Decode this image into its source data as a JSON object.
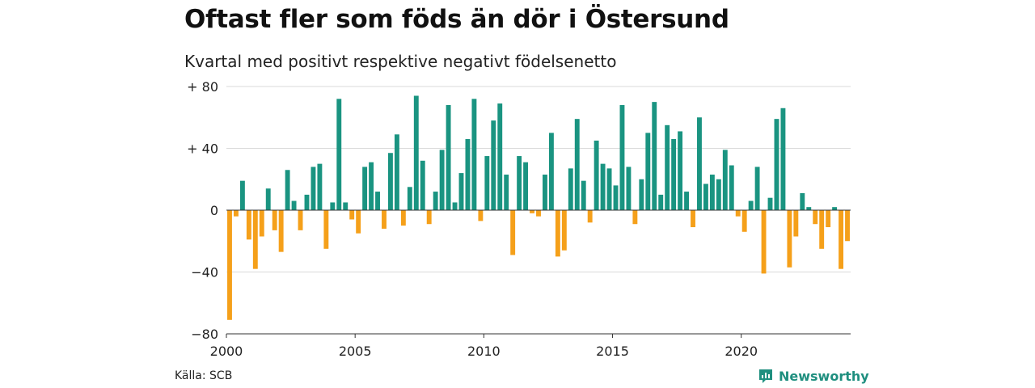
{
  "title": "Oftast fler som föds än dör i Östersund",
  "subtitle": "Kvartal med positivt respektive negativt födelsenetto",
  "source": "Källa: SCB",
  "brand": "Newsworthy",
  "colors": {
    "positive": "#1a9481",
    "negative": "#f5a01a",
    "grid": "#d9d9d9",
    "brand": "#1f8f7f"
  },
  "chart_data": {
    "type": "bar",
    "x_start": "2000 Q1",
    "frequency": "quarterly",
    "ylim": [
      -80,
      80
    ],
    "y_ticks": [
      80,
      40,
      0,
      -40,
      -80
    ],
    "y_tick_labels": [
      "+ 80",
      "+ 40",
      "0",
      "−40",
      "−80"
    ],
    "x_ticks": [
      "2000",
      "2005",
      "2010",
      "2015",
      "2020"
    ],
    "grid": true,
    "values": [
      -71,
      -4,
      19,
      -19,
      -38,
      -17,
      14,
      -13,
      -27,
      26,
      6,
      -13,
      10,
      28,
      30,
      -25,
      5,
      72,
      5,
      -6,
      -15,
      28,
      31,
      12,
      -12,
      37,
      49,
      -10,
      15,
      74,
      32,
      -9,
      12,
      39,
      68,
      5,
      24,
      46,
      72,
      -7,
      35,
      58,
      69,
      23,
      -29,
      35,
      31,
      -2,
      -4,
      23,
      50,
      -30,
      -26,
      27,
      59,
      19,
      -8,
      45,
      30,
      27,
      16,
      68,
      28,
      -9,
      20,
      50,
      70,
      10,
      55,
      46,
      51,
      12,
      -11,
      60,
      17,
      23,
      20,
      39,
      29,
      -4,
      -14,
      6,
      28,
      -41,
      8,
      59,
      66,
      -37,
      -17,
      11,
      2,
      -9,
      -25,
      -11,
      2,
      -38,
      -20
    ]
  }
}
